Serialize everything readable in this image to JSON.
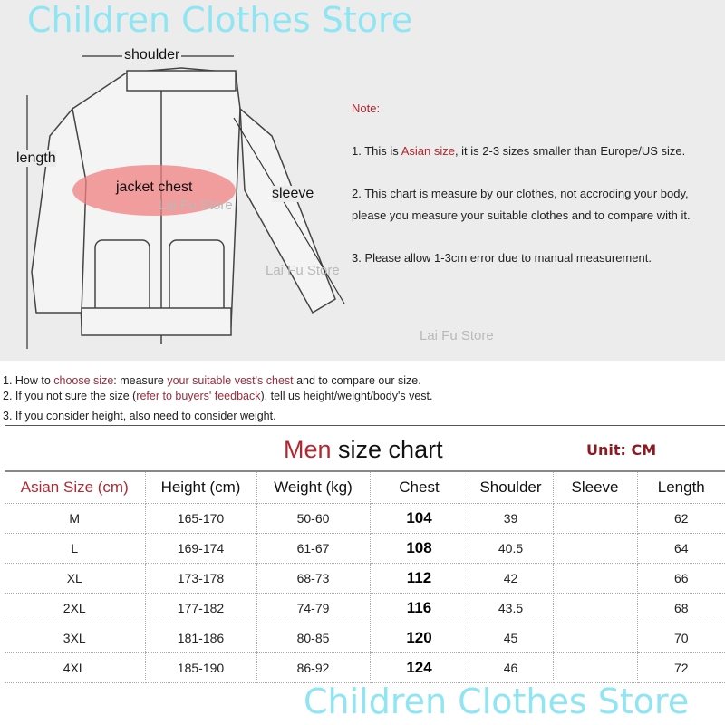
{
  "brand": {
    "top": "Children Clothes Store",
    "bottom": "Children Clothes Store",
    "color": "#8fe6f2"
  },
  "diagram": {
    "labels": {
      "shoulder": "shoulder",
      "length": "length",
      "chest": "jacket chest",
      "sleeve": "sleeve"
    },
    "watermarks": [
      "Lai Fu Store",
      "Lai Fu Store",
      "Lai Fu Store"
    ],
    "note": {
      "title": "Note:",
      "line1_pre": "1. This is ",
      "line1_red": "Asian size",
      "line1_post": ", it is 2-3 sizes smaller than Europe/US size.",
      "line2a": "2. This chart is measure by our clothes, not accroding your body,",
      "line2b": "please you measure your suitable clothes and to compare with it.",
      "line3": "3. Please allow 1-3cm error due to manual measurement."
    }
  },
  "tips": {
    "t1": {
      "a": "1. How to ",
      "b": "choose size",
      "c": ": measure ",
      "d": "your suitable vest's chest",
      "e": " and to compare our size."
    },
    "t2": {
      "a": "2. If you not sure the size (",
      "b": "refer to buyers' feedback",
      "c": "), tell us height/weight/body's vest."
    },
    "t3": "3. If you consider height, also need to consider weight."
  },
  "table": {
    "title_red": "Men",
    "title_rest": " size chart",
    "unit": "Unit: CM",
    "headers": [
      "Asian Size (cm)",
      "Height (cm)",
      "Weight (kg)",
      "Chest",
      "Shoulder",
      "Sleeve",
      "Length"
    ],
    "rows": [
      [
        "M",
        "165-170",
        "50-60",
        "104",
        "39",
        "",
        "62"
      ],
      [
        "L",
        "169-174",
        "61-67",
        "108",
        "40.5",
        "",
        "64"
      ],
      [
        "XL",
        "173-178",
        "68-73",
        "112",
        "42",
        "",
        "66"
      ],
      [
        "2XL",
        "177-182",
        "74-79",
        "116",
        "43.5",
        "",
        "68"
      ],
      [
        "3XL",
        "181-186",
        "80-85",
        "120",
        "45",
        "",
        "70"
      ],
      [
        "4XL",
        "185-190",
        "86-92",
        "124",
        "46",
        "",
        "72"
      ]
    ]
  }
}
